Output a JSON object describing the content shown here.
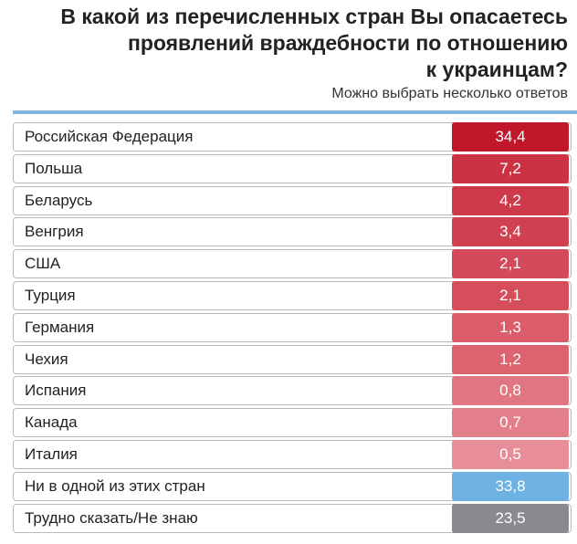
{
  "header": {
    "title_lines": [
      "В какой из перечисленных стран Вы опасаетесь",
      "проявлений враждебности по отношению",
      "к украинцам?"
    ],
    "subtitle": "Можно выбрать несколько ответов"
  },
  "table": {
    "rows": [
      {
        "label": "Российская Федерация",
        "value": "34,4",
        "color": "#c1172b"
      },
      {
        "label": "Польша",
        "value": "7,2",
        "color": "#cb3244"
      },
      {
        "label": "Беларусь",
        "value": "4,2",
        "color": "#cf3a4b"
      },
      {
        "label": "Венгрия",
        "value": "3,4",
        "color": "#d14050"
      },
      {
        "label": "США",
        "value": "2,1",
        "color": "#d54a5a"
      },
      {
        "label": "Турция",
        "value": "2,1",
        "color": "#d64d5c"
      },
      {
        "label": "Германия",
        "value": "1,3",
        "color": "#db5c6a"
      },
      {
        "label": "Чехия",
        "value": "1,2",
        "color": "#dd6371"
      },
      {
        "label": "Испания",
        "value": "0,8",
        "color": "#e17683"
      },
      {
        "label": "Канада",
        "value": "0,7",
        "color": "#e37f8a"
      },
      {
        "label": "Италия",
        "value": "0,5",
        "color": "#e78e98"
      },
      {
        "label": "Ни в одной из этих стран",
        "value": "33,8",
        "color": "#6db2e3"
      },
      {
        "label": "Трудно сказать/Не знаю",
        "value": "23,5",
        "color": "#8a8a8e"
      }
    ]
  }
}
